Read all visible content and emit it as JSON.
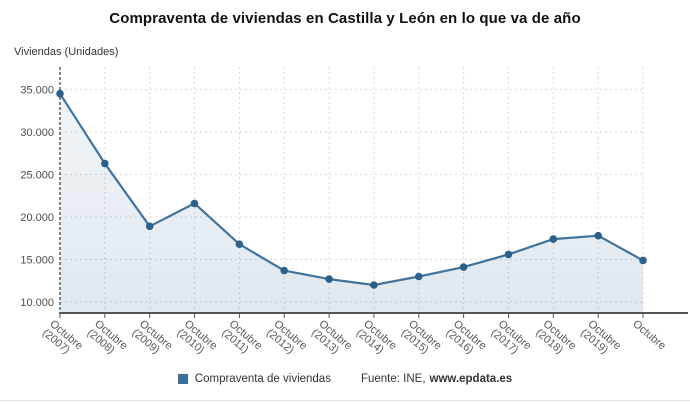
{
  "page": {
    "title": "Compraventa de viviendas en Castilla y León en lo que va de año"
  },
  "chart_data": {
    "type": "area",
    "title": "Compraventa de viviendas en Castilla y León en lo que va de año",
    "xlabel": "",
    "ylabel": "Viviendas (Unidades)",
    "categories": [
      "Octubre (2007)",
      "Octubre (2008)",
      "Octubre (2009)",
      "Octubre (2010)",
      "Octubre (2011)",
      "Octubre (2012)",
      "Octubre (2013)",
      "Octubre (2014)",
      "Octubre (2015)",
      "Octubre (2016)",
      "Octubre (2017)",
      "Octubre (2018)",
      "Octubre (2019)",
      "Octubre"
    ],
    "series": [
      {
        "name": "Compraventa de viviendas",
        "values": [
          34500,
          26300,
          18900,
          21600,
          16800,
          13700,
          12700,
          12000,
          13000,
          14100,
          15600,
          17400,
          17800,
          14900
        ]
      }
    ],
    "ylim": [
      10000,
      37500
    ],
    "yticks": [
      {
        "value": 10000,
        "label": "10.000"
      },
      {
        "value": 15000,
        "label": "15.000"
      },
      {
        "value": 20000,
        "label": "20.000"
      },
      {
        "value": 25000,
        "label": "25.000"
      },
      {
        "value": 30000,
        "label": "30.000"
      },
      {
        "value": 35000,
        "label": "35.000"
      }
    ],
    "grid": true,
    "legend_position": "bottom"
  },
  "footer": {
    "source_prefix": "Fuente: INE,",
    "source_site": "www.epdata.es"
  },
  "colors": {
    "line": "#3f739d",
    "marker": "#2c6088",
    "legend_swatch": "#39719b",
    "area_fill": "#39719b",
    "grid": "#d9d9d9",
    "axis": "#555555",
    "y_axis_line": "#3a3a3a",
    "ytick_text": "#4d4d4d",
    "xtick_text": "#595959",
    "title_text": "#111111"
  }
}
